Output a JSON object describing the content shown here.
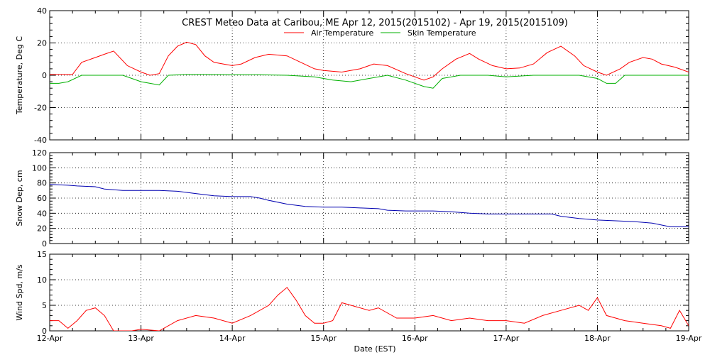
{
  "chart_data": [
    {
      "type": "line",
      "title": "CREST Meteo Data at Caribou, ME   Apr 12, 2015(2015102) - Apr 19, 2015(2015109)",
      "ylabel": "Temperature, Deg C",
      "ylim": [
        -40,
        40
      ],
      "yticks": [
        -40,
        -20,
        0,
        20,
        40
      ],
      "xlim": [
        0,
        7
      ],
      "legend_position": "top-center",
      "series": [
        {
          "name": "Air Temperature",
          "color": "#ff0000",
          "x": [
            0,
            0.25,
            0.35,
            0.5,
            0.6,
            0.7,
            0.85,
            1.0,
            1.1,
            1.2,
            1.3,
            1.4,
            1.5,
            1.6,
            1.7,
            1.8,
            1.9,
            2.0,
            2.1,
            2.25,
            2.4,
            2.6,
            2.75,
            2.9,
            3.0,
            3.2,
            3.4,
            3.55,
            3.7,
            3.9,
            4.0,
            4.1,
            4.2,
            4.3,
            4.45,
            4.6,
            4.7,
            4.85,
            5.0,
            5.15,
            5.3,
            5.45,
            5.6,
            5.75,
            5.85,
            6.0,
            6.1,
            6.25,
            6.35,
            6.5,
            6.6,
            6.7,
            6.85,
            7.0
          ],
          "y": [
            0.5,
            0.5,
            8,
            11,
            13,
            15,
            6,
            2,
            0,
            1,
            12,
            18,
            20.5,
            19,
            12,
            8,
            7,
            6,
            7,
            11,
            13,
            12,
            8,
            4,
            3,
            2,
            4,
            7,
            6,
            1,
            -1,
            -3,
            -1,
            4,
            10,
            13.5,
            10,
            6,
            4,
            4.5,
            7,
            14,
            18,
            12,
            6,
            2,
            0,
            4,
            8,
            11,
            10,
            7,
            5,
            2
          ]
        },
        {
          "name": "Skin Temperature",
          "color": "#00b000",
          "x": [
            0,
            0.1,
            0.2,
            0.35,
            0.5,
            0.7,
            0.8,
            0.9,
            1.0,
            1.1,
            1.2,
            1.3,
            1.5,
            1.7,
            2.0,
            2.3,
            2.6,
            2.9,
            3.1,
            3.3,
            3.5,
            3.7,
            3.9,
            4.1,
            4.2,
            4.3,
            4.5,
            4.8,
            5.0,
            5.3,
            5.6,
            5.8,
            6.0,
            6.1,
            6.2,
            6.3,
            6.5,
            6.8,
            7.0
          ],
          "y": [
            -5,
            -5,
            -4,
            0,
            0,
            0,
            0,
            -2,
            -4,
            -5,
            -6,
            0,
            0.5,
            0.5,
            0.3,
            0.3,
            0,
            -1,
            -3,
            -4,
            -2,
            0,
            -3,
            -7,
            -8,
            -2,
            0,
            0,
            -1,
            0,
            0,
            0,
            -2,
            -5,
            -5,
            0,
            0,
            0,
            0
          ]
        }
      ]
    },
    {
      "type": "line",
      "ylabel": "Snow Dep, cm",
      "ylim": [
        0,
        120
      ],
      "yticks": [
        0,
        20,
        40,
        60,
        80,
        100,
        120
      ],
      "xlim": [
        0,
        7
      ],
      "series": [
        {
          "color": "#0000b0",
          "x": [
            0,
            0.2,
            0.3,
            0.5,
            0.6,
            0.8,
            1.0,
            1.2,
            1.4,
            1.6,
            1.8,
            2.0,
            2.2,
            2.3,
            2.4,
            2.6,
            2.8,
            3.0,
            3.2,
            3.4,
            3.6,
            3.7,
            3.9,
            4.0,
            4.2,
            4.4,
            4.6,
            4.8,
            5.0,
            5.1,
            5.3,
            5.5,
            5.6,
            5.8,
            6.0,
            6.2,
            6.4,
            6.6,
            6.8,
            7.0
          ],
          "y": [
            78,
            77,
            76,
            75,
            72,
            70,
            70,
            70,
            69,
            66,
            63,
            62,
            62,
            60,
            57,
            52,
            49,
            48,
            48,
            47,
            46,
            44,
            43,
            43,
            43,
            42,
            40,
            39,
            39,
            39,
            39,
            39,
            36,
            33,
            31,
            30,
            29,
            27,
            22,
            22
          ]
        }
      ]
    },
    {
      "type": "line",
      "xlabel": "Date (EST)",
      "ylabel": "Wind Spd, m/s",
      "ylim": [
        0,
        15
      ],
      "yticks": [
        0,
        5,
        10,
        15
      ],
      "xlim": [
        0,
        7
      ],
      "xticks": [
        "12-Apr",
        "13-Apr",
        "14-Apr",
        "15-Apr",
        "16-Apr",
        "17-Apr",
        "18-Apr",
        "19-Apr"
      ],
      "series": [
        {
          "color": "#ff0000",
          "x": [
            0,
            0.1,
            0.2,
            0.3,
            0.4,
            0.5,
            0.6,
            0.7,
            0.8,
            0.9,
            1.0,
            1.2,
            1.4,
            1.6,
            1.8,
            2.0,
            2.2,
            2.4,
            2.5,
            2.6,
            2.7,
            2.8,
            2.9,
            3.0,
            3.1,
            3.2,
            3.3,
            3.5,
            3.6,
            3.8,
            4.0,
            4.2,
            4.4,
            4.6,
            4.8,
            5.0,
            5.2,
            5.4,
            5.6,
            5.8,
            5.9,
            6.0,
            6.1,
            6.3,
            6.5,
            6.7,
            6.8,
            6.9,
            7.0
          ],
          "y": [
            2,
            2,
            0.5,
            2,
            4,
            4.5,
            3,
            0,
            0,
            0,
            0.3,
            0,
            2,
            3,
            2.5,
            1.5,
            3,
            5,
            7,
            8.5,
            6,
            3,
            1.5,
            1.5,
            2,
            5.5,
            5,
            4,
            4.5,
            2.5,
            2.5,
            3,
            2,
            2.5,
            2,
            2,
            1.5,
            3,
            4,
            5,
            4,
            6.5,
            3,
            2,
            1.5,
            1,
            0.5,
            4,
            1
          ]
        }
      ]
    }
  ]
}
